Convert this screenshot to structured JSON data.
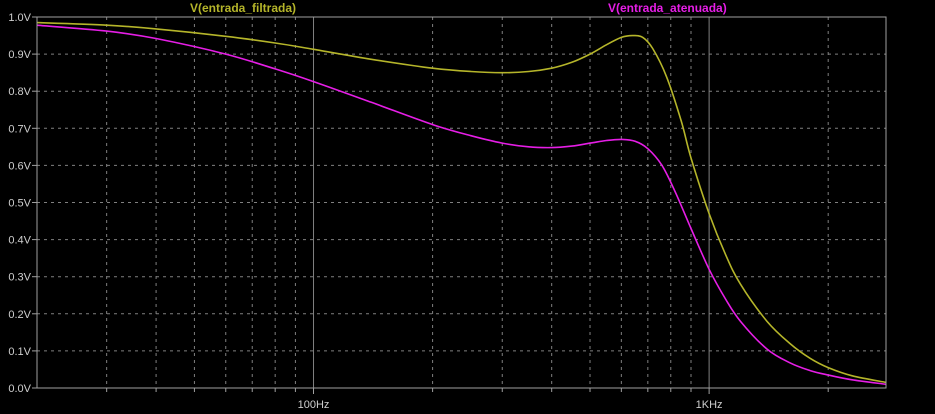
{
  "chart_data": {
    "type": "line",
    "title": "",
    "xlabel": "",
    "ylabel": "",
    "x_scale": "log",
    "xlim": [
      20,
      2800
    ],
    "ylim": [
      0.0,
      1.0
    ],
    "grid": true,
    "legend": "top",
    "x_major_ticks": [
      {
        "value": 100,
        "label": "100Hz"
      },
      {
        "value": 1000,
        "label": "1KHz"
      }
    ],
    "y_ticks": [
      {
        "value": 0.0,
        "label": "0.0V"
      },
      {
        "value": 0.1,
        "label": "0.1V"
      },
      {
        "value": 0.2,
        "label": "0.2V"
      },
      {
        "value": 0.3,
        "label": "0.3V"
      },
      {
        "value": 0.4,
        "label": "0.4V"
      },
      {
        "value": 0.5,
        "label": "0.5V"
      },
      {
        "value": 0.6,
        "label": "0.6V"
      },
      {
        "value": 0.7,
        "label": "0.7V"
      },
      {
        "value": 0.8,
        "label": "0.8V"
      },
      {
        "value": 0.9,
        "label": "0.9V"
      },
      {
        "value": 1.0,
        "label": "1.0V"
      }
    ],
    "background": "#000000",
    "axis_color": "#a0a0a0",
    "grid_color": "#808080",
    "series": [
      {
        "name": "V(entrada_filtrada)",
        "color": "#b5b52a",
        "points": [
          [
            20,
            0.985
          ],
          [
            30,
            0.978
          ],
          [
            40,
            0.968
          ],
          [
            60,
            0.948
          ],
          [
            80,
            0.93
          ],
          [
            100,
            0.913
          ],
          [
            140,
            0.886
          ],
          [
            200,
            0.862
          ],
          [
            250,
            0.853
          ],
          [
            300,
            0.85
          ],
          [
            350,
            0.853
          ],
          [
            400,
            0.862
          ],
          [
            450,
            0.878
          ],
          [
            500,
            0.9
          ],
          [
            550,
            0.925
          ],
          [
            600,
            0.945
          ],
          [
            640,
            0.95
          ],
          [
            680,
            0.945
          ],
          [
            720,
            0.915
          ],
          [
            780,
            0.84
          ],
          [
            850,
            0.72
          ],
          [
            900,
            0.62
          ],
          [
            1000,
            0.47
          ],
          [
            1100,
            0.36
          ],
          [
            1200,
            0.28
          ],
          [
            1400,
            0.18
          ],
          [
            1600,
            0.12
          ],
          [
            1800,
            0.08
          ],
          [
            2000,
            0.055
          ],
          [
            2300,
            0.033
          ],
          [
            2800,
            0.015
          ]
        ]
      },
      {
        "name": "V(entrada_atenuada)",
        "color": "#e61ee6",
        "points": [
          [
            20,
            0.978
          ],
          [
            30,
            0.962
          ],
          [
            40,
            0.942
          ],
          [
            60,
            0.9
          ],
          [
            80,
            0.86
          ],
          [
            100,
            0.826
          ],
          [
            140,
            0.77
          ],
          [
            200,
            0.71
          ],
          [
            250,
            0.68
          ],
          [
            300,
            0.66
          ],
          [
            350,
            0.65
          ],
          [
            400,
            0.648
          ],
          [
            450,
            0.652
          ],
          [
            500,
            0.66
          ],
          [
            550,
            0.667
          ],
          [
            600,
            0.67
          ],
          [
            650,
            0.665
          ],
          [
            700,
            0.645
          ],
          [
            760,
            0.6
          ],
          [
            820,
            0.53
          ],
          [
            900,
            0.43
          ],
          [
            1000,
            0.32
          ],
          [
            1100,
            0.24
          ],
          [
            1200,
            0.18
          ],
          [
            1400,
            0.105
          ],
          [
            1600,
            0.068
          ],
          [
            1800,
            0.047
          ],
          [
            2000,
            0.035
          ],
          [
            2300,
            0.022
          ],
          [
            2800,
            0.01
          ]
        ]
      }
    ]
  }
}
